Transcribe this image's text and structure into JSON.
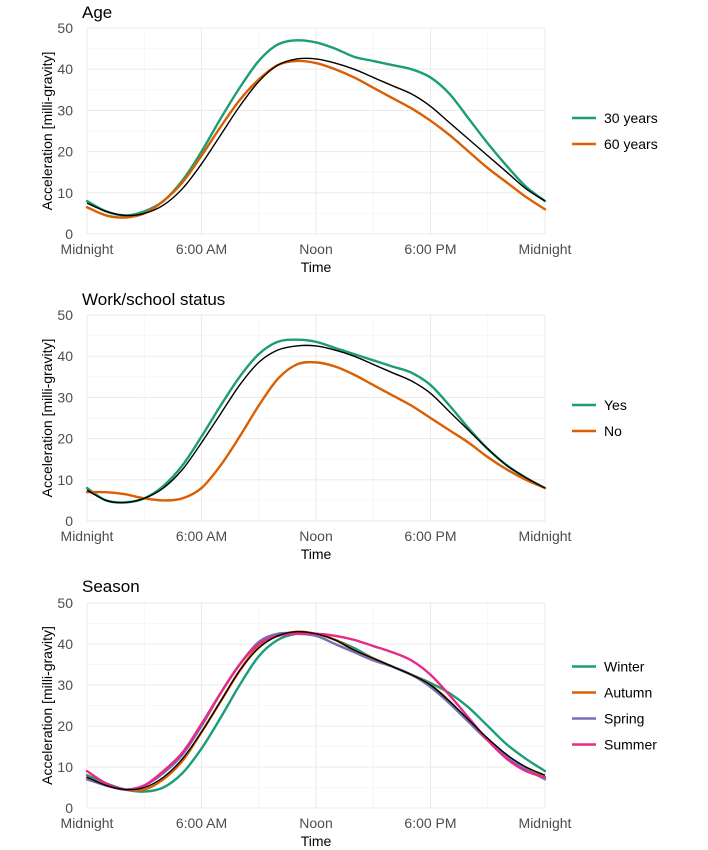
{
  "chart_data": [
    {
      "type": "line",
      "title": "Age",
      "xlabel": "Time",
      "ylabel": "Acceleration [milli-gravity]",
      "xlim": [
        0,
        24
      ],
      "ylim": [
        0,
        50
      ],
      "x_ticks": [
        {
          "value": 0,
          "label": "Midnight"
        },
        {
          "value": 6,
          "label": "6:00 AM"
        },
        {
          "value": 12,
          "label": "Noon"
        },
        {
          "value": 18,
          "label": "6:00 PM"
        },
        {
          "value": 24,
          "label": "Midnight"
        }
      ],
      "y_ticks": [
        0,
        10,
        20,
        30,
        40,
        50
      ],
      "x": [
        0,
        1,
        2,
        3,
        4,
        5,
        6,
        7,
        8,
        9,
        10,
        11,
        12,
        13,
        14,
        15,
        16,
        17,
        18,
        19,
        20,
        21,
        22,
        23,
        24
      ],
      "overall": {
        "color": "#000000",
        "values": [
          7.5,
          5.5,
          4.5,
          5.0,
          7.0,
          11.0,
          17.0,
          24.0,
          31.0,
          37.0,
          41.0,
          42.5,
          42.5,
          41.5,
          40.0,
          38.0,
          36.0,
          34.0,
          31.0,
          27.0,
          23.0,
          19.0,
          15.0,
          11.0,
          8.0
        ]
      },
      "series": [
        {
          "name": "30 years",
          "color": "#1b9e77",
          "values": [
            8.0,
            5.5,
            4.5,
            5.5,
            8.0,
            13.0,
            20.0,
            28.0,
            35.5,
            42.0,
            46.0,
            47.0,
            46.5,
            45.0,
            43.0,
            42.0,
            41.0,
            40.0,
            38.0,
            34.0,
            28.0,
            22.0,
            16.5,
            11.5,
            8.0
          ]
        },
        {
          "name": "60 years",
          "color": "#d95f02",
          "values": [
            6.5,
            4.5,
            4.0,
            5.0,
            8.0,
            12.5,
            19.0,
            26.0,
            32.5,
            37.5,
            41.0,
            42.0,
            41.5,
            40.0,
            38.0,
            35.5,
            33.0,
            30.5,
            27.5,
            24.0,
            20.0,
            16.0,
            12.5,
            9.0,
            6.0
          ]
        }
      ]
    },
    {
      "type": "line",
      "title": "Work/school status",
      "xlabel": "Time",
      "ylabel": "Acceleration [milli-gravity]",
      "xlim": [
        0,
        24
      ],
      "ylim": [
        0,
        50
      ],
      "x_ticks": [
        {
          "value": 0,
          "label": "Midnight"
        },
        {
          "value": 6,
          "label": "6:00 AM"
        },
        {
          "value": 12,
          "label": "Noon"
        },
        {
          "value": 18,
          "label": "6:00 PM"
        },
        {
          "value": 24,
          "label": "Midnight"
        }
      ],
      "y_ticks": [
        0,
        10,
        20,
        30,
        40,
        50
      ],
      "x": [
        0,
        1,
        2,
        3,
        4,
        5,
        6,
        7,
        8,
        9,
        10,
        11,
        12,
        13,
        14,
        15,
        16,
        17,
        18,
        19,
        20,
        21,
        22,
        23,
        24
      ],
      "overall": {
        "color": "#000000",
        "values": [
          7.5,
          5.0,
          4.5,
          5.5,
          8.0,
          12.5,
          19.0,
          26.0,
          33.0,
          38.5,
          41.5,
          42.5,
          42.5,
          41.5,
          40.0,
          38.0,
          36.0,
          34.0,
          31.0,
          26.5,
          22.0,
          17.5,
          13.5,
          10.5,
          8.0
        ]
      },
      "series": [
        {
          "name": "Yes",
          "color": "#1b9e77",
          "values": [
            8.0,
            5.0,
            4.5,
            5.5,
            8.5,
            13.5,
            20.5,
            28.0,
            35.0,
            40.5,
            43.5,
            44.0,
            43.5,
            42.0,
            40.5,
            39.0,
            37.5,
            36.0,
            33.0,
            28.0,
            22.5,
            17.5,
            13.5,
            10.5,
            8.0
          ]
        },
        {
          "name": "No",
          "color": "#d95f02",
          "values": [
            7.0,
            7.0,
            6.5,
            5.5,
            5.0,
            5.5,
            8.0,
            13.5,
            20.5,
            28.0,
            34.5,
            38.0,
            38.5,
            37.5,
            35.5,
            33.0,
            30.5,
            28.0,
            25.0,
            22.0,
            19.0,
            15.5,
            12.5,
            10.0,
            8.0
          ]
        }
      ]
    },
    {
      "type": "line",
      "title": "Season",
      "xlabel": "Time",
      "ylabel": "Acceleration [milli-gravity]",
      "xlim": [
        0,
        24
      ],
      "ylim": [
        0,
        50
      ],
      "x_ticks": [
        {
          "value": 0,
          "label": "Midnight"
        },
        {
          "value": 6,
          "label": "6:00 AM"
        },
        {
          "value": 12,
          "label": "Noon"
        },
        {
          "value": 18,
          "label": "6:00 PM"
        },
        {
          "value": 24,
          "label": "Midnight"
        }
      ],
      "y_ticks": [
        0,
        10,
        20,
        30,
        40,
        50
      ],
      "x": [
        0,
        1,
        2,
        3,
        4,
        5,
        6,
        7,
        8,
        9,
        10,
        11,
        12,
        13,
        14,
        15,
        16,
        17,
        18,
        19,
        20,
        21,
        22,
        23,
        24
      ],
      "overall": {
        "color": "#000000",
        "values": [
          7.5,
          5.5,
          4.5,
          5.0,
          7.5,
          12.0,
          18.5,
          26.0,
          33.5,
          39.0,
          42.0,
          43.0,
          42.5,
          41.0,
          38.5,
          36.5,
          34.5,
          32.5,
          30.0,
          26.0,
          21.5,
          17.0,
          13.0,
          10.0,
          8.0
        ]
      },
      "series": [
        {
          "name": "Winter",
          "color": "#1b9e77",
          "values": [
            8.0,
            6.0,
            4.5,
            4.0,
            5.0,
            8.5,
            14.5,
            22.0,
            30.0,
            37.0,
            41.0,
            42.5,
            42.5,
            41.0,
            39.0,
            36.5,
            34.5,
            32.5,
            30.5,
            28.0,
            24.5,
            20.0,
            15.5,
            12.0,
            9.0
          ]
        },
        {
          "name": "Autumn",
          "color": "#d95f02",
          "values": [
            7.5,
            5.5,
            4.5,
            4.5,
            7.0,
            11.5,
            18.5,
            26.0,
            33.5,
            39.5,
            42.0,
            43.0,
            42.5,
            41.0,
            38.5,
            36.5,
            34.5,
            32.5,
            30.0,
            26.0,
            21.0,
            16.5,
            12.5,
            9.5,
            7.5
          ]
        },
        {
          "name": "Spring",
          "color": "#7570b3",
          "values": [
            7.0,
            5.5,
            4.5,
            5.5,
            8.5,
            13.0,
            20.0,
            28.0,
            35.0,
            40.5,
            42.5,
            42.5,
            42.0,
            40.0,
            38.0,
            36.0,
            34.5,
            32.5,
            29.5,
            25.5,
            21.0,
            16.5,
            12.5,
            9.5,
            7.0
          ]
        },
        {
          "name": "Summer",
          "color": "#e7298a",
          "values": [
            9.0,
            6.0,
            4.5,
            5.5,
            9.0,
            13.5,
            20.5,
            28.0,
            35.0,
            40.0,
            42.0,
            42.5,
            42.5,
            42.0,
            41.0,
            39.5,
            38.0,
            36.0,
            32.5,
            27.5,
            22.0,
            16.5,
            12.0,
            9.0,
            7.5
          ]
        }
      ]
    }
  ]
}
